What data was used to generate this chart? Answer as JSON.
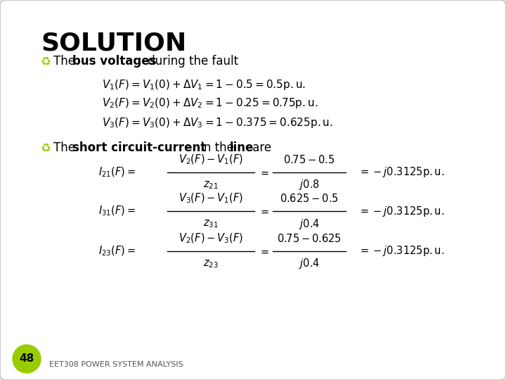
{
  "background_color": "#f0f0f0",
  "title": "SOLUTION",
  "title_color": "#000000",
  "bullet_color": "#99cc00",
  "eq1": "$V_1(F)=V_1(0)+\\Delta V_1 = 1-0.5 = 0.5\\mathrm{p.u.}$",
  "eq2": "$V_2(F)=V_2(0)+\\Delta V_2 = 1-0.25 = 0.75\\mathrm{p.u.}$",
  "eq3": "$V_3(F)=V_3(0)+\\Delta V_3 = 1-0.375 = 0.625\\mathrm{p.u.}$",
  "feq1_lhs": "$I_{21}(F)=$",
  "feq1_num": "$V_2(F)-V_1(F)$",
  "feq1_den": "$z_{21}$",
  "feq1_rhs1_num": "$0.75-0.5$",
  "feq1_rhs1_den": "$j0.8$",
  "feq1_result": "$= -j0.3125\\mathrm{p.u.}$",
  "feq2_lhs": "$I_{31}(F)=$",
  "feq2_num": "$V_3(F)-V_1(F)$",
  "feq2_den": "$z_{31}$",
  "feq2_rhs1_num": "$0.625-0.5$",
  "feq2_rhs1_den": "$j0.4$",
  "feq2_result": "$= -j0.3125\\mathrm{p.u.}$",
  "feq3_lhs": "$I_{23}(F)=$",
  "feq3_num": "$V_2(F)-V_3(F)$",
  "feq3_den": "$z_{23}$",
  "feq3_rhs1_num": "$0.75-0.625$",
  "feq3_rhs1_den": "$j0.4$",
  "feq3_result": "$= -j0.3125\\mathrm{p.u.}$",
  "footer_text": "EET308 POWER SYSTEM ANALYSIS",
  "badge_text": "48",
  "badge_color": "#99cc00"
}
